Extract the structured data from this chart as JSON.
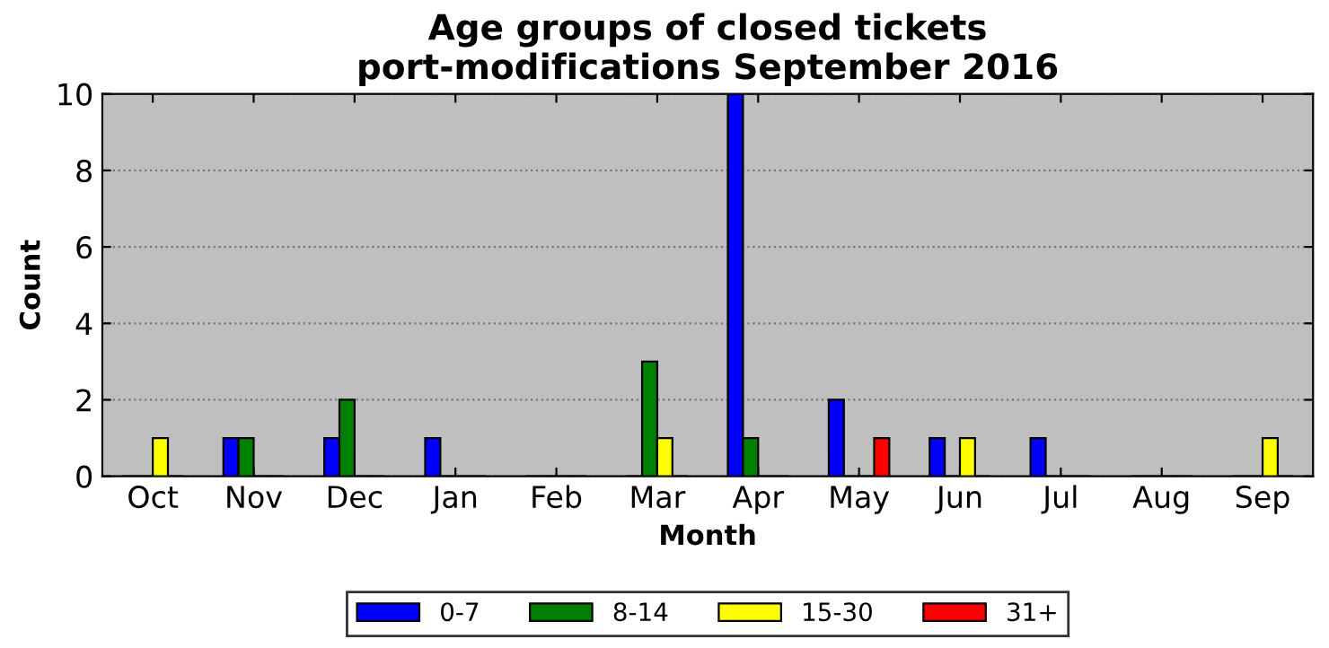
{
  "chart_data": {
    "type": "bar",
    "title": "Age groups of closed tickets\nport-modifications September 2016",
    "xlabel": "Month",
    "ylabel": "Count",
    "categories": [
      "Oct",
      "Nov",
      "Dec",
      "Jan",
      "Feb",
      "Mar",
      "Apr",
      "May",
      "Jun",
      "Jul",
      "Aug",
      "Sep"
    ],
    "series": [
      {
        "name": "0-7",
        "color": "#0000ff",
        "values": [
          0,
          1,
          1,
          1,
          0,
          0,
          10,
          2,
          1,
          1,
          0,
          0
        ]
      },
      {
        "name": "8-14",
        "color": "#008000",
        "values": [
          0,
          1,
          2,
          0,
          0,
          3,
          1,
          0,
          0,
          0,
          0,
          0
        ]
      },
      {
        "name": "15-30",
        "color": "#ffff00",
        "values": [
          1,
          0,
          0,
          0,
          0,
          1,
          0,
          0,
          1,
          0,
          0,
          1
        ]
      },
      {
        "name": "31+",
        "color": "#ff0000",
        "values": [
          0,
          0,
          0,
          0,
          0,
          0,
          0,
          1,
          0,
          0,
          0,
          0
        ]
      }
    ],
    "ylim": [
      0,
      10
    ],
    "yticks": [
      0,
      2,
      4,
      6,
      8,
      10
    ],
    "grid": "y",
    "legend": "bottom"
  }
}
